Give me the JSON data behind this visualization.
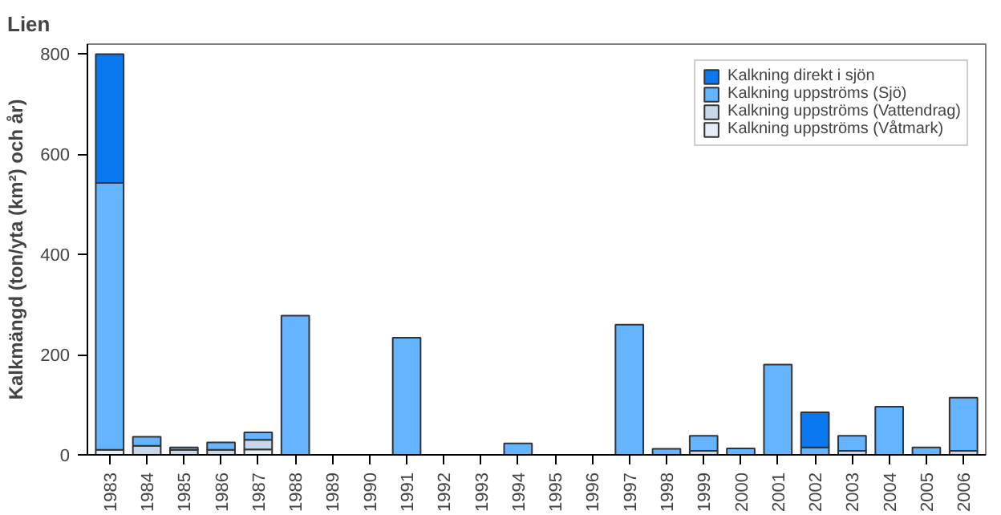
{
  "chart_data": {
    "type": "bar",
    "title": "Lien",
    "ylabel": "Kalkmängd (ton/yta (km²) och år)",
    "stacked": true,
    "categories": [
      "1983",
      "1984",
      "1985",
      "1986",
      "1987",
      "1988",
      "1989",
      "1990",
      "1991",
      "1992",
      "1993",
      "1994",
      "1995",
      "1996",
      "1997",
      "1998",
      "1999",
      "2000",
      "2001",
      "2002",
      "2003",
      "2004",
      "2005",
      "2006"
    ],
    "series": [
      {
        "name": "Kalkning uppströms (Våtmark)",
        "color": "#e6eef8",
        "values": [
          10,
          null,
          null,
          null,
          11,
          null,
          null,
          null,
          null,
          null,
          null,
          null,
          null,
          null,
          null,
          null,
          null,
          null,
          null,
          null,
          null,
          null,
          null,
          null
        ]
      },
      {
        "name": "Kalkning uppströms (Vattendrag)",
        "color": "#c8d8ea",
        "values": [
          null,
          18,
          10,
          10,
          19,
          null,
          null,
          null,
          null,
          null,
          null,
          null,
          null,
          null,
          null,
          null,
          8,
          null,
          null,
          null,
          8,
          null,
          null,
          8
        ]
      },
      {
        "name": "Kalkning uppströms (Sjö)",
        "color": "#64b4ff",
        "values": [
          533,
          18,
          5,
          15,
          15,
          278,
          null,
          null,
          234,
          null,
          null,
          23,
          null,
          null,
          260,
          12,
          30,
          13,
          180,
          15,
          30,
          96,
          15,
          106
        ]
      },
      {
        "name": "Kalkning direkt i sjön",
        "color": "#0a78f0",
        "values": [
          257,
          null,
          null,
          null,
          null,
          null,
          null,
          null,
          null,
          null,
          null,
          null,
          null,
          null,
          null,
          null,
          null,
          null,
          null,
          70,
          null,
          null,
          null,
          null
        ]
      }
    ],
    "ylim": [
      0,
      820
    ],
    "yticks": [
      0,
      200,
      400,
      600,
      800
    ],
    "grid": false,
    "legend": "top right"
  }
}
